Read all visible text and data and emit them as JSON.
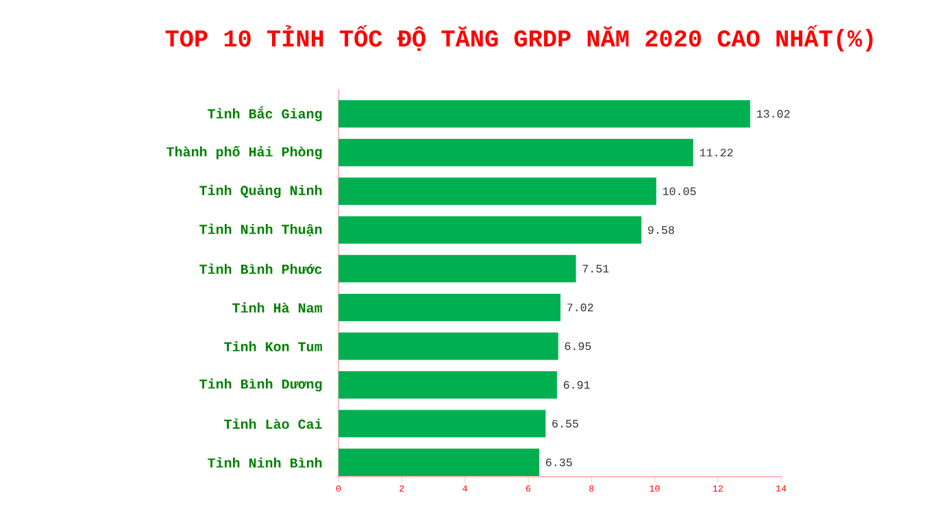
{
  "chart_data": {
    "type": "bar",
    "orientation": "horizontal",
    "title": "TOP 10 TỈNH TỐC ĐỘ TĂNG GRDP NĂM 2020 CAO NHẤT(%)",
    "categories": [
      "Tỉnh Bắc Giang",
      "Thành phố Hải Phòng",
      "Tỉnh Quảng Ninh",
      "Tỉnh Ninh Thuận",
      "Tỉnh Bình Phước",
      "Tỉnh Hà Nam",
      "Tỉnh Kon Tum",
      "Tỉnh Bình Dương",
      "Tỉnh Lào Cai",
      "Tỉnh Ninh Bình"
    ],
    "values": [
      13.02,
      11.22,
      10.05,
      9.58,
      7.51,
      7.02,
      6.95,
      6.91,
      6.55,
      6.35
    ],
    "color": "#00b050",
    "data_labels": true,
    "xlim": [
      0,
      14
    ],
    "xticks": [
      0,
      2,
      4,
      6,
      8,
      10,
      12,
      14
    ]
  }
}
